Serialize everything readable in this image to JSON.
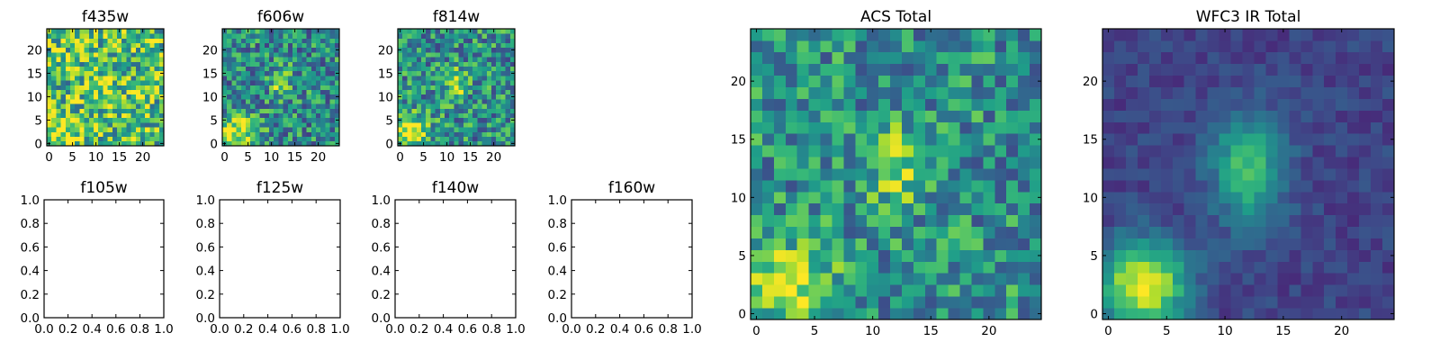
{
  "figure": {
    "colormap": "viridis",
    "colormap_stops": [
      "#440154",
      "#482878",
      "#3e4a89",
      "#31688e",
      "#26828e",
      "#1f9e89",
      "#35b779",
      "#6ece58",
      "#b5de2b",
      "#fde725"
    ]
  },
  "chart_data": [
    {
      "type": "heatmap",
      "title": "f435w",
      "xlim": [
        -0.5,
        24.5
      ],
      "ylim": [
        -0.5,
        24.5
      ],
      "xticks": [
        0,
        5,
        10,
        15,
        20
      ],
      "yticks": [
        0,
        5,
        10,
        15,
        20
      ],
      "xtick_labels": [
        "0",
        "5",
        "10",
        "15",
        "20"
      ],
      "ytick_labels": [
        "0",
        "5",
        "10",
        "15",
        "20"
      ],
      "grid_size": [
        25,
        25
      ],
      "noise": 0.36,
      "base": 0.68,
      "sources": [
        {
          "x": 2.5,
          "y": 2.5,
          "sigma_x": 3.2,
          "sigma_y": 2.6,
          "amp": 0.32
        },
        {
          "x": 12.0,
          "y": 13.0,
          "sigma_x": 2.5,
          "sigma_y": 3.5,
          "amp": 0.12
        }
      ],
      "seed": 11
    },
    {
      "type": "heatmap",
      "title": "f606w",
      "xlim": [
        -0.5,
        24.5
      ],
      "ylim": [
        -0.5,
        24.5
      ],
      "xticks": [
        0,
        5,
        10,
        15,
        20
      ],
      "yticks": [
        0,
        5,
        10,
        15,
        20
      ],
      "xtick_labels": [
        "0",
        "5",
        "10",
        "15",
        "20"
      ],
      "ytick_labels": [
        "0",
        "5",
        "10",
        "15",
        "20"
      ],
      "grid_size": [
        25,
        25
      ],
      "noise": 0.3,
      "base": 0.48,
      "sources": [
        {
          "x": 2.5,
          "y": 2.5,
          "sigma_x": 3.0,
          "sigma_y": 2.6,
          "amp": 0.5
        },
        {
          "x": 12.0,
          "y": 13.0,
          "sigma_x": 1.5,
          "sigma_y": 2.4,
          "amp": 0.35
        }
      ],
      "seed": 23
    },
    {
      "type": "heatmap",
      "title": "f814w",
      "xlim": [
        -0.5,
        24.5
      ],
      "ylim": [
        -0.5,
        24.5
      ],
      "xticks": [
        0,
        5,
        10,
        15,
        20
      ],
      "yticks": [
        0,
        5,
        10,
        15,
        20
      ],
      "xtick_labels": [
        "0",
        "5",
        "10",
        "15",
        "20"
      ],
      "ytick_labels": [
        "0",
        "5",
        "10",
        "15",
        "20"
      ],
      "grid_size": [
        25,
        25
      ],
      "noise": 0.3,
      "base": 0.5,
      "sources": [
        {
          "x": 2.5,
          "y": 2.5,
          "sigma_x": 2.6,
          "sigma_y": 2.6,
          "amp": 0.5
        },
        {
          "x": 12.0,
          "y": 12.5,
          "sigma_x": 1.5,
          "sigma_y": 2.4,
          "amp": 0.38
        }
      ],
      "seed": 37
    },
    {
      "type": "empty",
      "title": "f105w",
      "xlim": [
        0,
        1
      ],
      "ylim": [
        0,
        1
      ],
      "xticks": [
        0,
        0.2,
        0.4,
        0.6,
        0.8,
        1.0
      ],
      "yticks": [
        0,
        0.2,
        0.4,
        0.6,
        0.8,
        1.0
      ],
      "xtick_labels": [
        "0.0",
        "0.2",
        "0.4",
        "0.6",
        "0.8",
        "1.0"
      ],
      "ytick_labels": [
        "0.0",
        "0.2",
        "0.4",
        "0.6",
        "0.8",
        "1.0"
      ]
    },
    {
      "type": "empty",
      "title": "f125w",
      "xlim": [
        0,
        1
      ],
      "ylim": [
        0,
        1
      ],
      "xticks": [
        0,
        0.2,
        0.4,
        0.6,
        0.8,
        1.0
      ],
      "yticks": [
        0,
        0.2,
        0.4,
        0.6,
        0.8,
        1.0
      ],
      "xtick_labels": [
        "0.0",
        "0.2",
        "0.4",
        "0.6",
        "0.8",
        "1.0"
      ],
      "ytick_labels": [
        "0.0",
        "0.2",
        "0.4",
        "0.6",
        "0.8",
        "1.0"
      ]
    },
    {
      "type": "empty",
      "title": "f140w",
      "xlim": [
        0,
        1
      ],
      "ylim": [
        0,
        1
      ],
      "xticks": [
        0,
        0.2,
        0.4,
        0.6,
        0.8,
        1.0
      ],
      "yticks": [
        0,
        0.2,
        0.4,
        0.6,
        0.8,
        1.0
      ],
      "xtick_labels": [
        "0.0",
        "0.2",
        "0.4",
        "0.6",
        "0.8",
        "1.0"
      ],
      "ytick_labels": [
        "0.0",
        "0.2",
        "0.4",
        "0.6",
        "0.8",
        "1.0"
      ]
    },
    {
      "type": "empty",
      "title": "f160w",
      "xlim": [
        0,
        1
      ],
      "ylim": [
        0,
        1
      ],
      "xticks": [
        0,
        0.2,
        0.4,
        0.6,
        0.8,
        1.0
      ],
      "yticks": [
        0,
        0.2,
        0.4,
        0.6,
        0.8,
        1.0
      ],
      "xtick_labels": [
        "0.0",
        "0.2",
        "0.4",
        "0.6",
        "0.8",
        "1.0"
      ],
      "ytick_labels": [
        "0.0",
        "0.2",
        "0.4",
        "0.6",
        "0.8",
        "1.0"
      ]
    },
    {
      "type": "heatmap",
      "title": "ACS Total",
      "xlim": [
        -0.5,
        24.5
      ],
      "ylim": [
        -0.5,
        24.5
      ],
      "xticks": [
        0,
        5,
        10,
        15,
        20
      ],
      "yticks": [
        0,
        5,
        10,
        15,
        20
      ],
      "xtick_labels": [
        "0",
        "5",
        "10",
        "15",
        "20"
      ],
      "ytick_labels": [
        "0",
        "5",
        "10",
        "15",
        "20"
      ],
      "grid_size": [
        25,
        25
      ],
      "noise": 0.27,
      "base": 0.5,
      "sources": [
        {
          "x": 3.0,
          "y": 2.5,
          "sigma_x": 2.6,
          "sigma_y": 2.4,
          "amp": 0.46
        },
        {
          "x": 12.0,
          "y": 12.5,
          "sigma_x": 1.5,
          "sigma_y": 2.6,
          "amp": 0.32
        }
      ],
      "seed": 53
    },
    {
      "type": "heatmap",
      "title": "WFC3 IR Total",
      "xlim": [
        -0.5,
        24.5
      ],
      "ylim": [
        -0.5,
        24.5
      ],
      "xticks": [
        0,
        5,
        10,
        15,
        20
      ],
      "yticks": [
        0,
        5,
        10,
        15,
        20
      ],
      "xtick_labels": [
        "0",
        "5",
        "10",
        "15",
        "20"
      ],
      "ytick_labels": [
        "0",
        "5",
        "10",
        "15",
        "20"
      ],
      "grid_size": [
        25,
        25
      ],
      "noise": 0.08,
      "base": 0.2,
      "sources": [
        {
          "x": 3.0,
          "y": 2.5,
          "sigma_x": 2.6,
          "sigma_y": 2.6,
          "amp": 0.78
        },
        {
          "x": 12.0,
          "y": 12.5,
          "sigma_x": 2.2,
          "sigma_y": 3.3,
          "amp": 0.5
        }
      ],
      "seed": 71
    }
  ]
}
